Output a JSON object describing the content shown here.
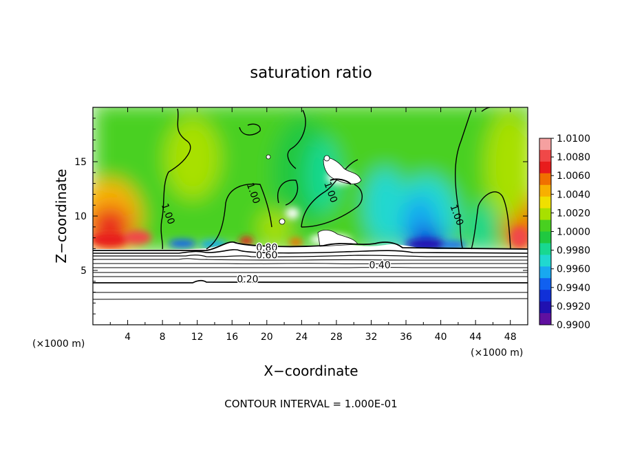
{
  "chart_data": {
    "type": "heatmap",
    "title": "saturation ratio",
    "xlabel": "X−coordinate",
    "ylabel": "Z−coordinate",
    "x_unit_left": "(×1000 m)",
    "x_unit_right": "(×1000 m)",
    "xlim": [
      0,
      50
    ],
    "ylim": [
      0,
      20
    ],
    "x_ticks": [
      4,
      8,
      12,
      16,
      20,
      24,
      28,
      32,
      36,
      40,
      44,
      48
    ],
    "y_ticks": [
      5,
      10,
      15
    ],
    "colorbar": {
      "labels": [
        "1.0100",
        "1.0080",
        "1.0060",
        "1.0040",
        "1.0020",
        "1.0000",
        "0.9980",
        "0.9960",
        "0.9940",
        "0.9920",
        "0.9900"
      ],
      "colors": [
        "#f5a0a0",
        "#f04848",
        "#e81c1c",
        "#f07000",
        "#f8b000",
        "#f0e000",
        "#a8e000",
        "#48d020",
        "#20c840",
        "#18d890",
        "#20d8d0",
        "#18a8f0",
        "#1060f0",
        "#1030d8",
        "#2010b0",
        "#6010a0"
      ],
      "range": [
        0.99,
        1.01
      ]
    },
    "contour_labels": [
      {
        "text": "1.00",
        "x": 8.3,
        "z": 10.1
      },
      {
        "text": "1.00",
        "x": 18.1,
        "z": 12.0
      },
      {
        "text": "1.00",
        "x": 27.0,
        "z": 12.1
      },
      {
        "text": "1.00",
        "x": 41.5,
        "z": 10.0
      },
      {
        "text": "0.80",
        "x": 20.0,
        "z": 6.8
      },
      {
        "text": "0.60",
        "x": 20.0,
        "z": 6.1
      },
      {
        "text": "0.40",
        "x": 33.0,
        "z": 5.2
      },
      {
        "text": "0.20",
        "x": 17.8,
        "z": 3.9
      }
    ],
    "contour_interval_text": "CONTOUR INTERVAL = 1.000E-01"
  }
}
